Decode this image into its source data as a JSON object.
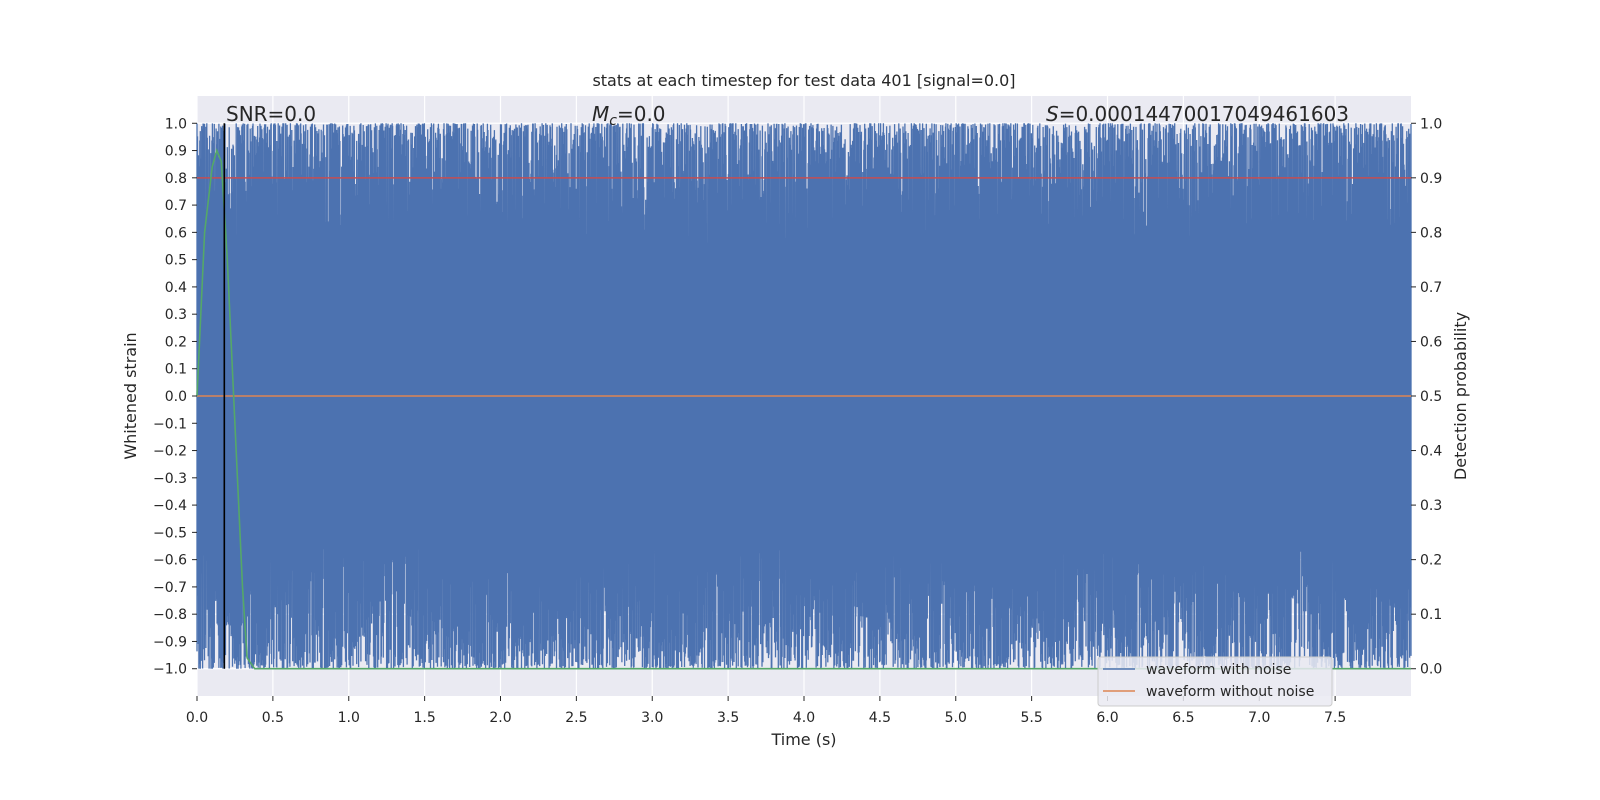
{
  "chart_data": {
    "type": "line",
    "title": "stats at each timestep for test data 401 [signal=0.0]",
    "xlabel": "Time (s)",
    "ylabel": "Whitened strain",
    "y2label": "Detection probability",
    "xlim": [
      0.0,
      8.0
    ],
    "ylim": [
      -1.1,
      1.1
    ],
    "y2lim": [
      -0.05,
      1.05
    ],
    "x_ticks": [
      "0.0",
      "0.5",
      "1.0",
      "1.5",
      "2.0",
      "2.5",
      "3.0",
      "3.5",
      "4.0",
      "4.5",
      "5.0",
      "5.5",
      "6.0",
      "6.5",
      "7.0",
      "7.5"
    ],
    "y_ticks": [
      "1.0",
      "0.9",
      "0.8",
      "0.7",
      "0.6",
      "0.5",
      "0.4",
      "0.3",
      "0.2",
      "0.1",
      "0.0",
      "−0.1",
      "−0.2",
      "−0.3",
      "−0.4",
      "−0.5",
      "−0.6",
      "−0.7",
      "−0.8",
      "−0.9",
      "−1.0"
    ],
    "y2_ticks": [
      "1.0",
      "0.9",
      "0.8",
      "0.7",
      "0.6",
      "0.5",
      "0.4",
      "0.3",
      "0.2",
      "0.1",
      "0.0"
    ],
    "grid": true,
    "legend_position": "bottom-right",
    "annotations": {
      "snr": "SNR=0.0",
      "mc_symbol": "M",
      "mc_sub": "c",
      "mc_value": "=0.0",
      "s_symbol": "S",
      "s_value": "=0.00014470017049461603"
    },
    "threshold_line_x": 0.18,
    "series": [
      {
        "name": "waveform with noise",
        "color": "#4c72b0",
        "axis": "left",
        "value_range": [
          -1.0,
          1.0
        ]
      },
      {
        "name": "waveform without noise",
        "color": "#dd8452",
        "axis": "left",
        "value": 0.0
      },
      {
        "color": "#55a868",
        "axis": "right",
        "x": [
          0.0,
          0.05,
          0.1,
          0.13,
          0.16,
          0.2,
          0.25,
          0.3,
          0.33,
          0.38,
          8.0
        ],
        "values": [
          0.5,
          0.8,
          0.92,
          0.95,
          0.93,
          0.75,
          0.45,
          0.15,
          0.02,
          0.0,
          0.0
        ]
      },
      {
        "color": "#c44e52",
        "axis": "right",
        "value": 0.9
      }
    ],
    "colors": {
      "plot_bg": "#eaeaf2",
      "grid": "#ffffff",
      "noise": "#4c72b0",
      "clean": "#dd8452",
      "prob": "#55a868",
      "thresh": "#c44e52",
      "marker": "#000000"
    }
  }
}
